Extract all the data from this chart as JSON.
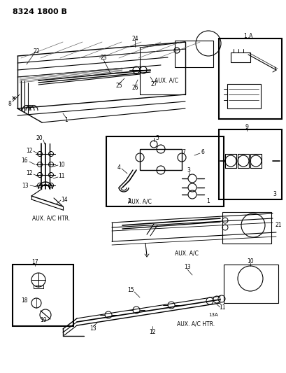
{
  "title": "8324 1800 B",
  "background_color": "#ffffff",
  "line_color": "#000000",
  "fig_width": 4.1,
  "fig_height": 5.33,
  "dpi": 100,
  "labels": {
    "top_label": "8324 1800 B",
    "aux_ac_top": "AUX. A/C",
    "aux_ac_htr_left": "AUX. A/C HTR.",
    "aux_ac_mid": "AUX. A/C",
    "aux_ac_htr_bot": "AUX. A/C HTR.",
    "aux_ac_inset": "AUX. A/C"
  }
}
